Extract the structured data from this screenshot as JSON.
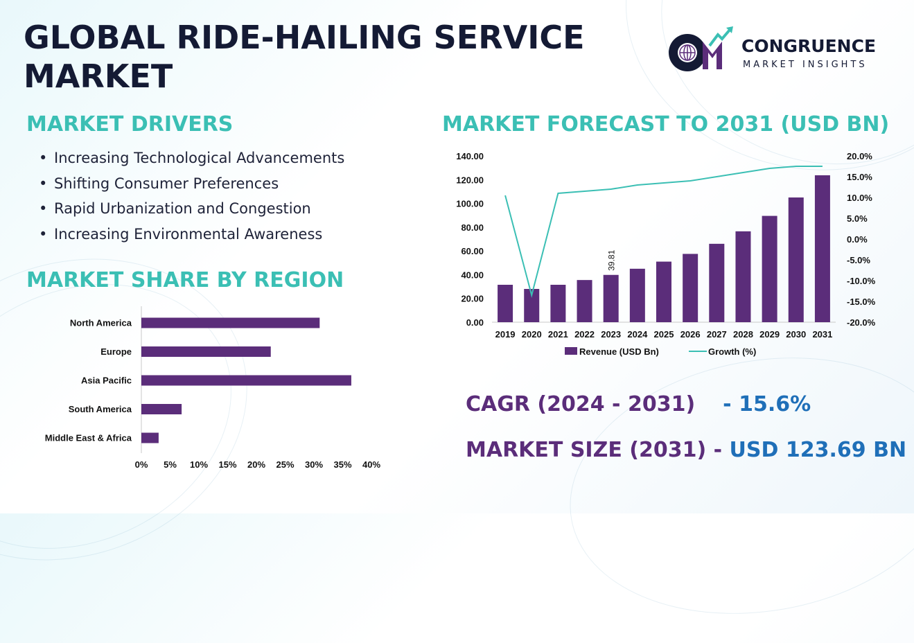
{
  "title_line1": "GLOBAL RIDE-HAILING SERVICE",
  "title_line2": "MARKET",
  "logo": {
    "name": "CONGRUENCE",
    "tagline": "MARKET INSIGHTS",
    "monogram": "CM"
  },
  "drivers": {
    "heading": "MARKET DRIVERS",
    "items": [
      "Increasing Technological Advancements",
      "Shifting Consumer Preferences",
      "Rapid Urbanization and Congestion",
      "Increasing Environmental Awareness"
    ]
  },
  "region": {
    "heading": "MARKET SHARE BY REGION"
  },
  "forecast": {
    "heading": "MARKET FORECAST TO 2031 (USD BN)"
  },
  "cagr": {
    "label": "CAGR (2024 - 2031)",
    "value": "- 15.6%"
  },
  "market_size": {
    "label": "MARKET SIZE (2031) -",
    "value": "USD 123.69 BN"
  },
  "colors": {
    "bar": "#5b2d7a",
    "line": "#3bbfb4",
    "accent": "#1f6fb8",
    "heading": "#3bbfb4",
    "title": "#141a34"
  },
  "chart_data": [
    {
      "type": "bar",
      "orientation": "horizontal",
      "title": "MARKET SHARE BY REGION",
      "categories": [
        "North America",
        "Europe",
        "Asia Pacific",
        "South America",
        "Middle East & Africa"
      ],
      "values": [
        31,
        22.5,
        36.5,
        7,
        3
      ],
      "xlim": [
        0,
        40
      ],
      "xticks": [
        "0%",
        "5%",
        "10%",
        "15%",
        "20%",
        "25%",
        "30%",
        "35%",
        "40%"
      ]
    },
    {
      "type": "bar",
      "title": "MARKET FORECAST TO 2031 (USD BN)",
      "categories": [
        "2019",
        "2020",
        "2021",
        "2022",
        "2023",
        "2024",
        "2025",
        "2026",
        "2027",
        "2028",
        "2029",
        "2030",
        "2031"
      ],
      "series": [
        {
          "name": "Revenue (USD Bn)",
          "type": "bar",
          "axis": "left",
          "values": [
            31.5,
            28,
            31.5,
            35.5,
            39.81,
            45,
            51,
            57.5,
            66,
            76.5,
            89.5,
            105,
            123.69
          ]
        },
        {
          "name": "Growth (%)",
          "type": "line",
          "axis": "right",
          "values": [
            10.5,
            -13.5,
            11,
            11.5,
            12,
            13,
            13.5,
            14,
            15,
            16,
            17,
            17.5,
            17.5
          ]
        }
      ],
      "data_labels": [
        {
          "category": "2023",
          "text": "39.81"
        }
      ],
      "ylim_left": [
        0,
        140
      ],
      "yticks_left": [
        "0.00",
        "20.00",
        "40.00",
        "60.00",
        "80.00",
        "100.00",
        "120.00",
        "140.00"
      ],
      "ylim_right": [
        -20,
        20
      ],
      "yticks_right": [
        "-20.0%",
        "-15.0%",
        "-10.0%",
        "-5.0%",
        "0.0%",
        "5.0%",
        "10.0%",
        "15.0%",
        "20.0%"
      ],
      "legend_position": "bottom"
    }
  ]
}
